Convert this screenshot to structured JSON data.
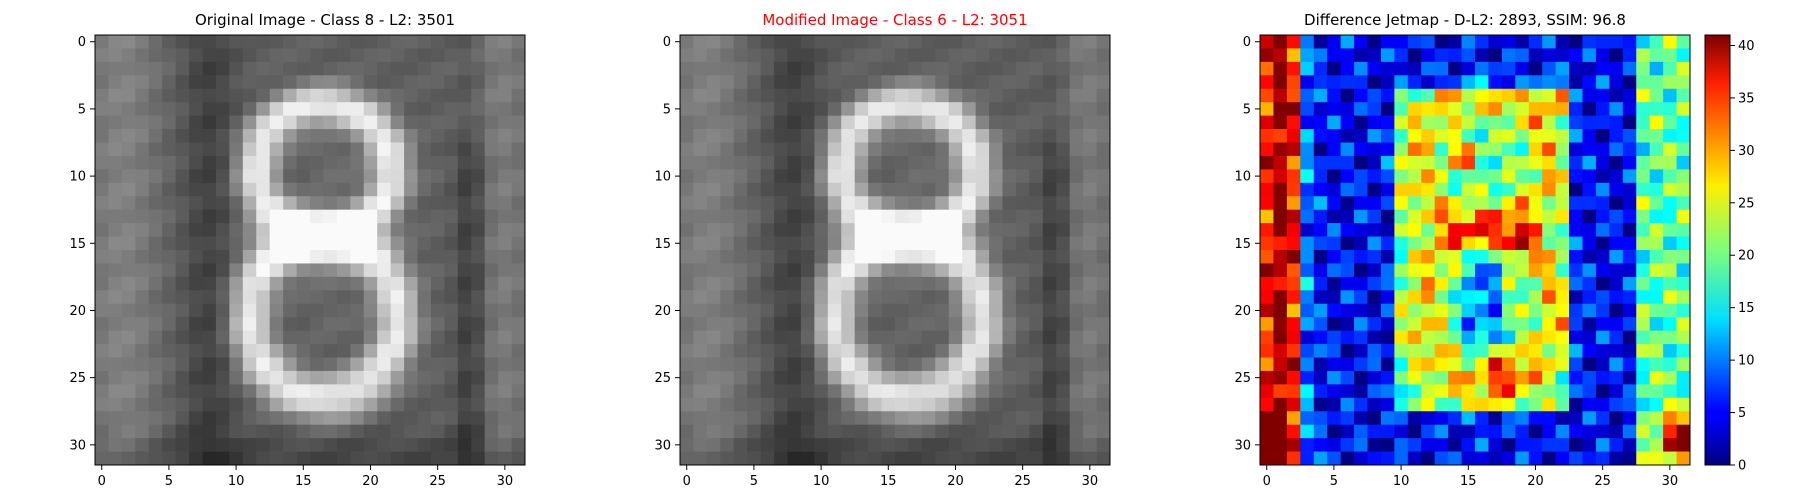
{
  "chart_data": [
    {
      "type": "heatmap",
      "title": "Original Image - Class 8 - L2: 3501",
      "title_color": "#000000",
      "colormap": "gray",
      "grid": false,
      "xlim": [
        -0.5,
        31.5
      ],
      "ylim": [
        31.5,
        -0.5
      ],
      "xticks": [
        0,
        5,
        10,
        15,
        20,
        25,
        30
      ],
      "yticks": [
        0,
        5,
        10,
        15,
        20,
        25,
        30
      ]
    },
    {
      "type": "heatmap",
      "title": "Modified Image - Class 6 - L2: 3051",
      "title_color": "#ff0000",
      "colormap": "gray",
      "grid": false,
      "xlim": [
        -0.5,
        31.5
      ],
      "ylim": [
        31.5,
        -0.5
      ],
      "xticks": [
        0,
        5,
        10,
        15,
        20,
        25,
        30
      ],
      "yticks": [
        0,
        5,
        10,
        15,
        20,
        25,
        30
      ]
    },
    {
      "type": "heatmap",
      "title": "Difference Jetmap - D-L2: 2893, SSIM: 96.8",
      "title_color": "#000000",
      "colormap": "jet",
      "grid": false,
      "xlim": [
        -0.5,
        31.5
      ],
      "ylim": [
        31.5,
        -0.5
      ],
      "xticks": [
        0,
        5,
        10,
        15,
        20,
        25,
        30
      ],
      "yticks": [
        0,
        5,
        10,
        15,
        20,
        25,
        30
      ],
      "colorbar": {
        "range": [
          0,
          41
        ],
        "ticks": [
          0,
          5,
          10,
          15,
          20,
          25,
          30,
          35,
          40
        ]
      }
    }
  ]
}
